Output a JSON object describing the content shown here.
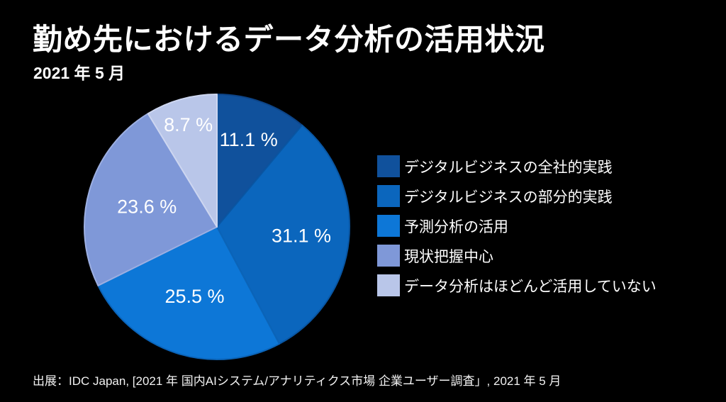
{
  "page": {
    "background": "#000000",
    "title": "勤め先におけるデータ分析の活用状況",
    "subtitle": "2021 年 5 月",
    "footer": "出展：IDC Japan, [2021 年 国内AIシステム/アナリティクス市場 企業ユーザー調査」, 2021 年 5 月"
  },
  "chart_data": {
    "type": "pie",
    "title": "勤め先におけるデータ分析の活用状況",
    "subtitle": "2021 年 5 月",
    "unit": "%",
    "start_angle_deg": 0,
    "direction": "clockwise",
    "legend_position": "right",
    "label_color": "#ffffff",
    "slices": [
      {
        "label": "デジタルビジネスの全社的実践",
        "value": 11.1,
        "display": "11.1 %",
        "color": "#10519c",
        "border": "#0d4385"
      },
      {
        "label": "デジタルビジネスの部分的実践",
        "value": 31.1,
        "display": "31.1 %",
        "color": "#0b66bd",
        "border": "#0956a3"
      },
      {
        "label": "予測分析の活用",
        "value": 25.5,
        "display": "25.5 %",
        "color": "#0d77d7",
        "border": "#0b64b8"
      },
      {
        "label": "現状把握中心",
        "value": 23.6,
        "display": "23.6 %",
        "color": "#7f98d8",
        "border": "#9cafe2"
      },
      {
        "label": "データ分析はほどんど活用していない",
        "value": 8.7,
        "display": "8.7 %",
        "color": "#b9c6e9",
        "border": "#cdd6f0"
      }
    ]
  }
}
